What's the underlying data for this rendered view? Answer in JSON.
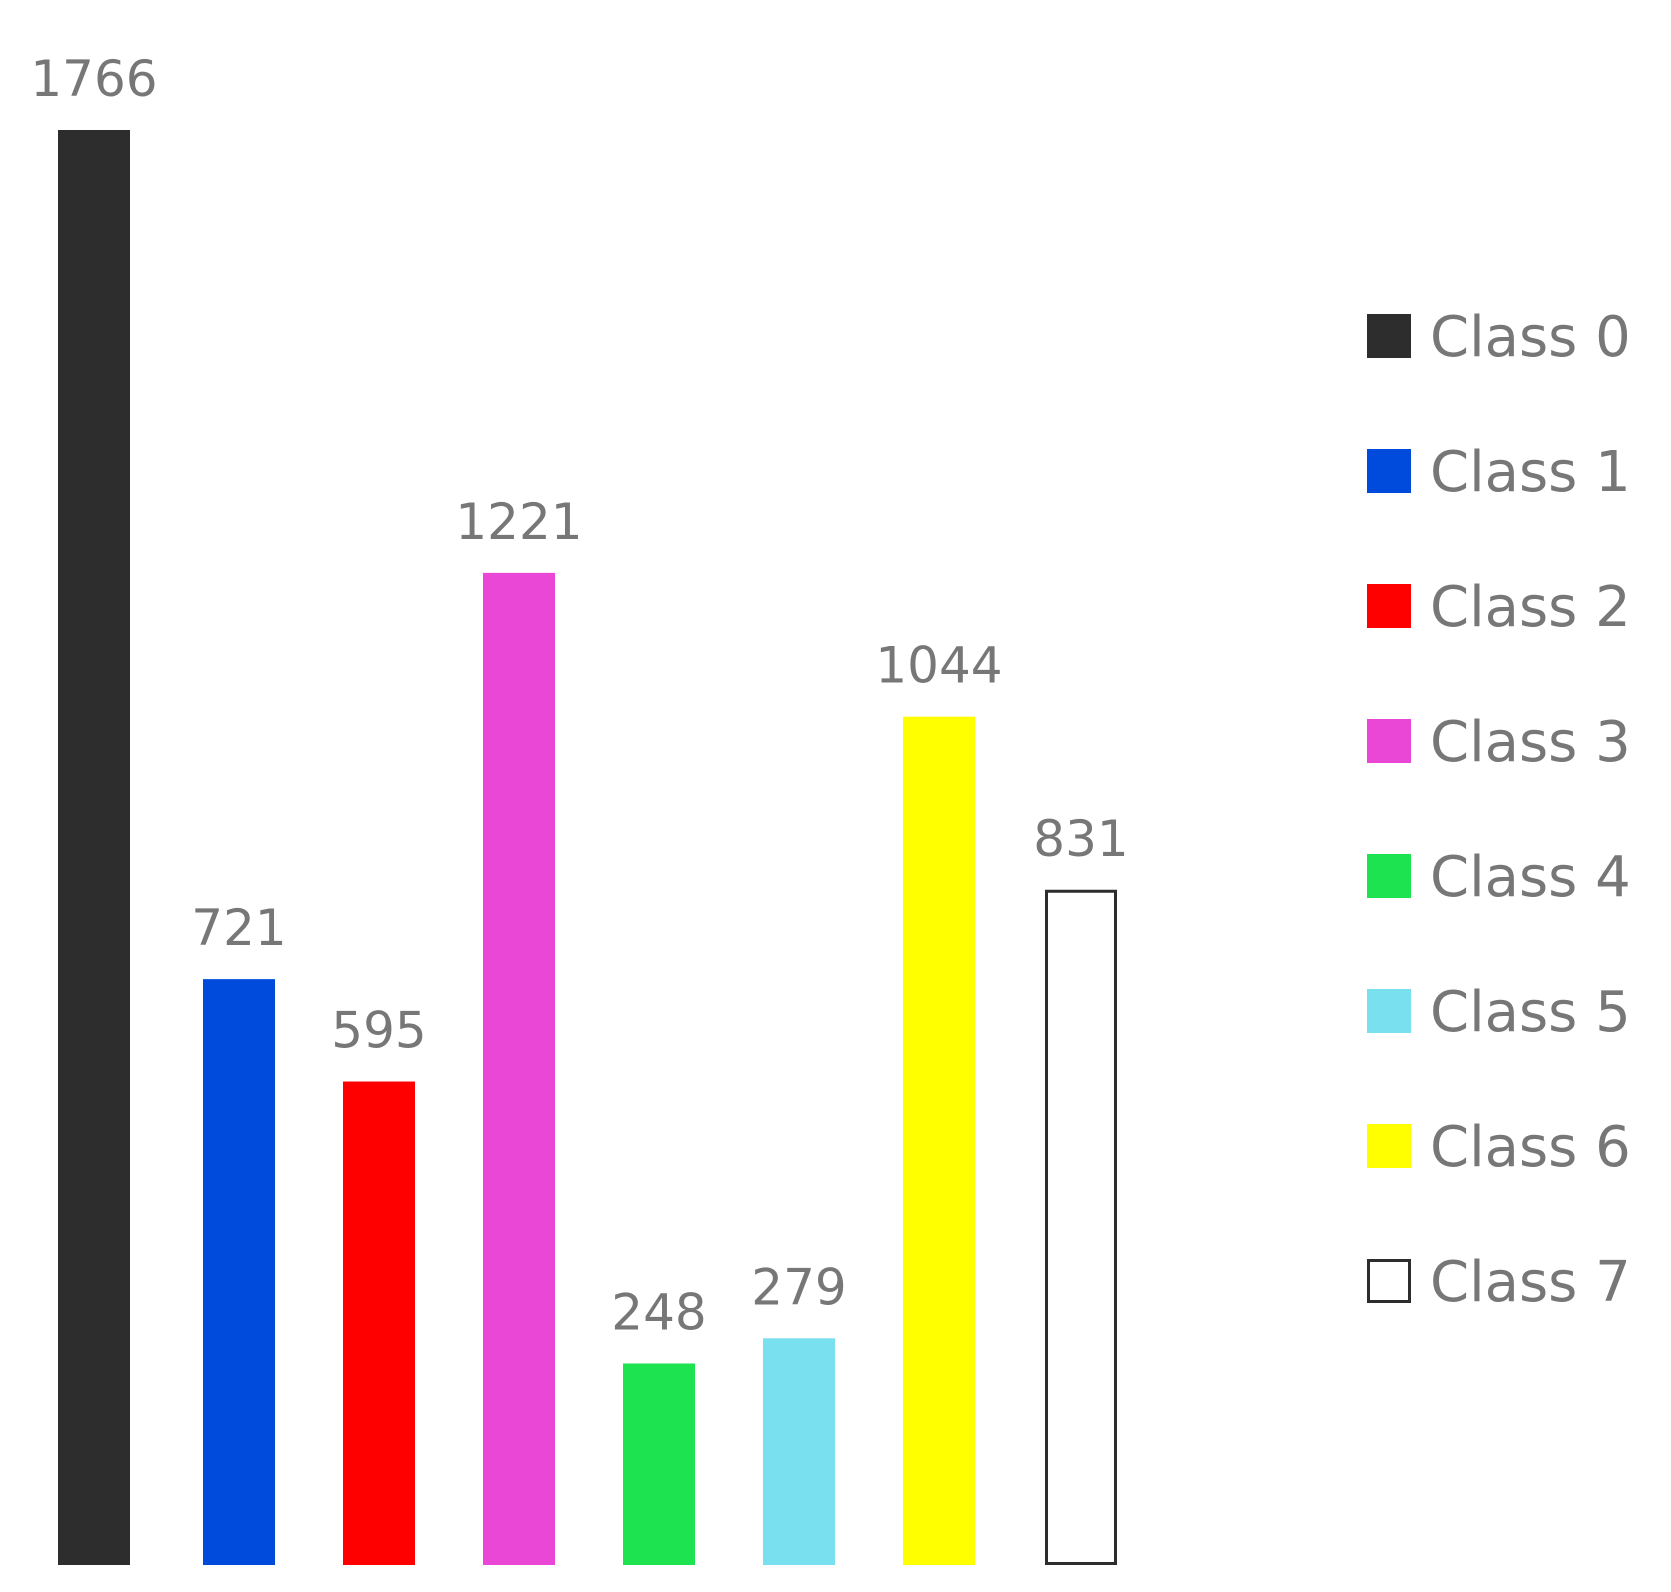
{
  "chart_data": {
    "type": "bar",
    "title": "",
    "xlabel": "",
    "ylabel": "",
    "ylim": [
      0,
      1766
    ],
    "grid": false,
    "legend_placement": "right",
    "categories": [
      "Class 0",
      "Class 1",
      "Class 2",
      "Class 3",
      "Class 4",
      "Class 5",
      "Class 6",
      "Class 7"
    ],
    "values": [
      1766,
      721,
      595,
      1221,
      248,
      279,
      1044,
      831
    ],
    "data_labels": [
      "1766",
      "721",
      "595",
      "1221",
      "248",
      "279",
      "1044",
      "831"
    ],
    "legend": [
      {
        "label": "Class 0",
        "color": "#2d2d2d",
        "outline": false
      },
      {
        "label": "Class 1",
        "color": "#004bdb",
        "outline": false
      },
      {
        "label": "Class 2",
        "color": "#ff0000",
        "outline": false
      },
      {
        "label": "Class 3",
        "color": "#eb47d6",
        "outline": false
      },
      {
        "label": "Class 4",
        "color": "#1ce34f",
        "outline": false
      },
      {
        "label": "Class 5",
        "color": "#78e0ef",
        "outline": false
      },
      {
        "label": "Class 6",
        "color": "#ffff00",
        "outline": false
      },
      {
        "label": "Class 7",
        "color": "#ffffff",
        "outline": true
      }
    ]
  }
}
